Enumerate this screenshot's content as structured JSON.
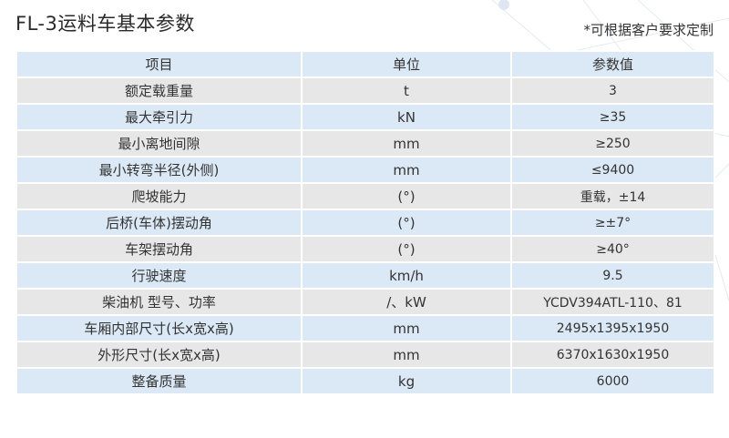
{
  "title": "FL-3运料车基本参数",
  "note": "*可根据客户要求定制",
  "table": {
    "headers": [
      "项目",
      "单位",
      "参数值"
    ],
    "rows": [
      [
        "额定载重量",
        "t",
        "3"
      ],
      [
        "最大牵引力",
        "kN",
        "≥35"
      ],
      [
        "最小离地间隙",
        "mm",
        "≥250"
      ],
      [
        "最小转弯半径(外侧)",
        "mm",
        "≤9400"
      ],
      [
        "爬坡能力",
        "(°)",
        "重载，±14"
      ],
      [
        "后桥(车体)摆动角",
        "(°)",
        "≥±7°"
      ],
      [
        "车架摆动角",
        "(°)",
        "≥40°"
      ],
      [
        "行驶速度",
        "km/h",
        "9.5"
      ],
      [
        "柴油机 型号、功率",
        "/、kW",
        "YCDV394ATL-110、81"
      ],
      [
        "车厢内部尺寸(长x宽x高)",
        "mm",
        "2495x1395x1950"
      ],
      [
        "外形尺寸(长x宽x高)",
        "mm",
        "6370x1630x1950"
      ],
      [
        "整备质量",
        "kg",
        "6000"
      ]
    ]
  },
  "colors": {
    "header_row": "#dbe8f5",
    "alt_row": "#e7e7e7"
  }
}
